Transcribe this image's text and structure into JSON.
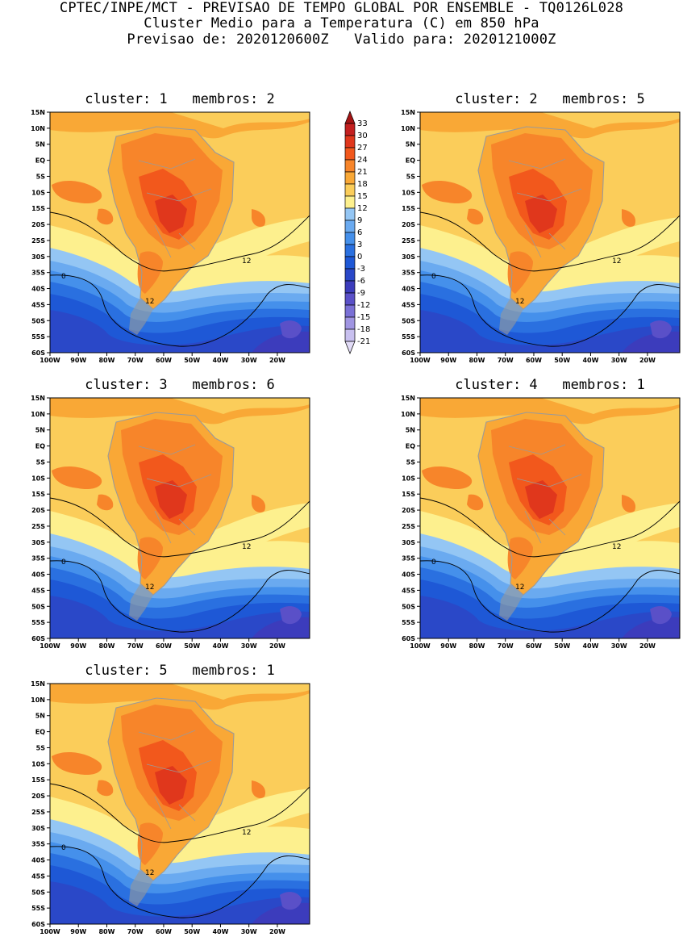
{
  "header": {
    "line1": "CPTEC/INPE/MCT - PREVISAO DE TEMPO GLOBAL POR ENSEMBLE - TQ0126L028",
    "line2": "Cluster Medio para a Temperatura (C) em 850 hPa",
    "line3": "Previsao de: 2020120600Z   Valido para: 2020121000Z"
  },
  "lat_ticks": [
    "15N",
    "10N",
    "5N",
    "EQ",
    "5S",
    "10S",
    "15S",
    "20S",
    "25S",
    "30S",
    "35S",
    "40S",
    "45S",
    "50S",
    "55S",
    "60S"
  ],
  "lon_ticks": [
    "100W",
    "90W",
    "80W",
    "70W",
    "60W",
    "50W",
    "40W",
    "30W",
    "20W"
  ],
  "colorbar": {
    "levels": [
      "33",
      "30",
      "27",
      "24",
      "21",
      "18",
      "15",
      "12",
      "9",
      "6",
      "3",
      "0",
      "-3",
      "-6",
      "-9",
      "-12",
      "-15",
      "-18",
      "-21"
    ],
    "colors": [
      "#a51414",
      "#c42020",
      "#e0371c",
      "#f2581c",
      "#f7852a",
      "#f9a836",
      "#fbcd5a",
      "#fdf08e",
      "#94c6f4",
      "#6aaaf0",
      "#4590eb",
      "#2a70e0",
      "#1e58d6",
      "#2a48c8",
      "#3c3cbc",
      "#5a50c8",
      "#7a70d6",
      "#a095e2",
      "#c8c0ef",
      "#e2dcf7"
    ]
  },
  "panels": [
    {
      "title": "cluster: 1   membros: 2"
    },
    {
      "title": "cluster: 2   membros: 5"
    },
    {
      "title": "cluster: 3   membros: 6"
    },
    {
      "title": "cluster: 4   membros: 1"
    },
    {
      "title": "cluster: 5   membros: 1"
    }
  ],
  "contour_labels": {
    "c0": "0",
    "c12": "12"
  }
}
